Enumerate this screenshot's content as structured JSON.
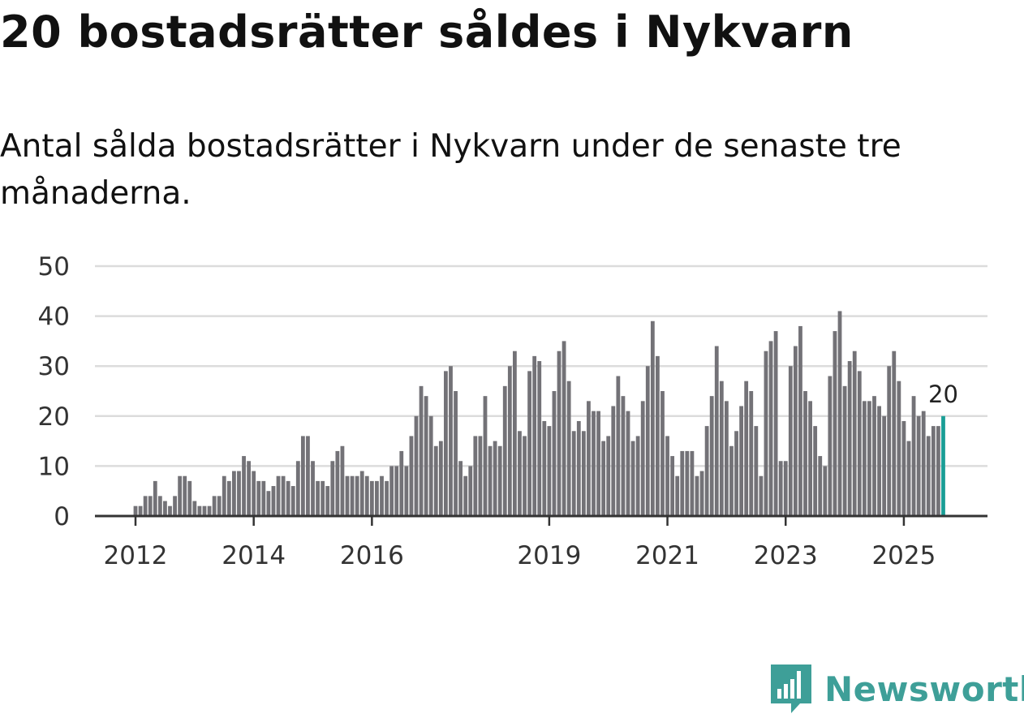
{
  "header": {
    "title": "20 bostadsrätter såldes i Nykvarn",
    "subtitle": "Antal sålda bostadsrätter i Nykvarn under de senaste tre månaderna."
  },
  "brand": {
    "name": "Newsworthy",
    "icon": "newsworthy-logo-icon",
    "color": "#3e9f98"
  },
  "colors": {
    "bar": "#737277",
    "highlight": "#1a9e96",
    "grid": "#dcdcdc",
    "axis": "#333333"
  },
  "chart_data": {
    "type": "bar",
    "title": "20 bostadsrätter såldes i Nykvarn",
    "subtitle": "Antal sålda bostadsrätter i Nykvarn under de senaste tre månaderna.",
    "xlabel": "",
    "ylabel": "",
    "ylim": [
      0,
      50
    ],
    "yticks": [
      "0",
      "10",
      "20",
      "30",
      "40",
      "50"
    ],
    "grid": true,
    "x_start": "2012-01",
    "x_ticks": [
      {
        "label": "2012",
        "index": 0
      },
      {
        "label": "2014",
        "index": 24
      },
      {
        "label": "2016",
        "index": 48
      },
      {
        "label": "2019",
        "index": 84
      },
      {
        "label": "2021",
        "index": 108
      },
      {
        "label": "2023",
        "index": 132
      },
      {
        "label": "2025",
        "index": 156
      }
    ],
    "values": [
      2,
      2,
      4,
      4,
      7,
      4,
      3,
      2,
      4,
      8,
      8,
      7,
      3,
      2,
      2,
      2,
      4,
      4,
      8,
      7,
      9,
      9,
      12,
      11,
      9,
      7,
      7,
      5,
      6,
      8,
      8,
      7,
      6,
      11,
      16,
      16,
      11,
      7,
      7,
      6,
      11,
      13,
      14,
      8,
      8,
      8,
      9,
      8,
      7,
      7,
      8,
      7,
      10,
      10,
      13,
      10,
      16,
      20,
      26,
      24,
      20,
      14,
      15,
      29,
      30,
      25,
      11,
      8,
      10,
      16,
      16,
      24,
      14,
      15,
      14,
      26,
      30,
      33,
      17,
      16,
      29,
      32,
      31,
      19,
      18,
      25,
      33,
      35,
      27,
      17,
      19,
      17,
      23,
      21,
      21,
      15,
      16,
      22,
      28,
      24,
      21,
      15,
      16,
      23,
      30,
      39,
      32,
      25,
      16,
      12,
      8,
      13,
      13,
      13,
      8,
      9,
      18,
      24,
      34,
      27,
      23,
      14,
      17,
      22,
      27,
      25,
      18,
      8,
      33,
      35,
      37,
      11,
      11,
      30,
      34,
      38,
      25,
      23,
      18,
      12,
      10,
      28,
      37,
      41,
      26,
      31,
      33,
      29,
      23,
      23,
      24,
      22,
      20,
      30,
      33,
      27,
      19,
      15,
      24,
      20,
      21,
      16,
      18,
      18,
      20
    ],
    "highlight_last": true,
    "last_value_label": "20"
  }
}
